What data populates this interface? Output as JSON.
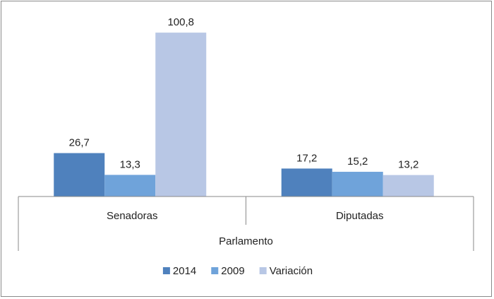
{
  "chart_data": {
    "type": "bar",
    "group_label": "Parlamento",
    "categories": [
      "Senadoras",
      "Diputadas"
    ],
    "series": [
      {
        "name": "2014",
        "values": [
          26.7,
          17.2
        ],
        "labels": [
          "26,7",
          "17,2"
        ],
        "color": "#4f81bd"
      },
      {
        "name": "2009",
        "values": [
          13.3,
          15.2
        ],
        "labels": [
          "13,3",
          "15,2"
        ],
        "color": "#6fa3da"
      },
      {
        "name": "Variación",
        "values": [
          100.8,
          13.2
        ],
        "labels": [
          "100,8",
          "13,2"
        ],
        "color": "#b8c7e5"
      }
    ],
    "ylim": [
      0,
      110
    ],
    "grid": false,
    "legend": "bottom-center"
  }
}
